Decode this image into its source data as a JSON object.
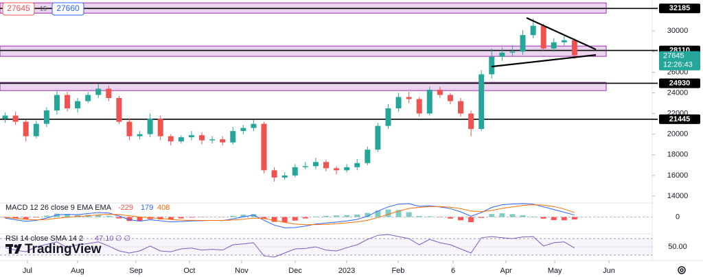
{
  "chart_data": {
    "type": "candlestick",
    "candles": {
      "open": [
        21500,
        21800,
        21200,
        19800,
        21000,
        22300,
        23800,
        22500,
        23200,
        23800,
        24400,
        23500,
        21200,
        19800,
        20000,
        21500,
        19800,
        19300,
        19700,
        19900,
        19400,
        19500,
        19200,
        20300,
        20600,
        21000,
        16500,
        15800,
        16000,
        16800,
        16900,
        17300,
        16700,
        16500,
        16800,
        17200,
        18500,
        20800,
        22500,
        23600,
        23400,
        22000,
        24300,
        23800,
        23200,
        22000,
        20500,
        25800,
        27500,
        27900,
        28000,
        29600,
        30500,
        28300,
        28900,
        29100
      ],
      "high": [
        22100,
        22200,
        21400,
        21300,
        22600,
        24200,
        24100,
        23500,
        24100,
        24900,
        24700,
        23700,
        21500,
        20300,
        22000,
        21800,
        20000,
        19900,
        20300,
        20200,
        19800,
        19800,
        20700,
        20900,
        21400,
        21200,
        16800,
        16300,
        17100,
        17300,
        17700,
        17500,
        16900,
        17100,
        17600,
        18800,
        21100,
        22900,
        24000,
        24100,
        23600,
        24600,
        24600,
        24000,
        23500,
        22300,
        26200,
        28300,
        28400,
        28600,
        30100,
        31200,
        30700,
        29300,
        29600,
        29300
      ],
      "low": [
        21100,
        20900,
        19300,
        19600,
        20700,
        21900,
        22200,
        22100,
        23000,
        23500,
        23200,
        21000,
        19400,
        19500,
        19700,
        19400,
        18900,
        19100,
        19400,
        19000,
        19100,
        18900,
        19000,
        20000,
        20300,
        16200,
        15400,
        15600,
        15800,
        16600,
        16600,
        16400,
        16100,
        16300,
        16500,
        17000,
        18300,
        20500,
        22200,
        23000,
        21700,
        21800,
        23500,
        22900,
        21700,
        19800,
        20300,
        25400,
        27100,
        27600,
        27700,
        29300,
        28100,
        28000,
        28600,
        27300
      ],
      "close": [
        21800,
        21200,
        19800,
        21000,
        22300,
        23800,
        22500,
        23200,
        23800,
        24400,
        23500,
        21200,
        19800,
        20000,
        21500,
        19800,
        19300,
        19700,
        19900,
        19400,
        19500,
        19200,
        20300,
        20600,
        21000,
        16500,
        15800,
        16000,
        16800,
        16900,
        17300,
        16700,
        16500,
        16800,
        17200,
        18500,
        20800,
        22500,
        23600,
        23400,
        22000,
        24300,
        23800,
        23200,
        22000,
        20500,
        25800,
        27500,
        27900,
        28000,
        29600,
        30500,
        28300,
        28900,
        29100,
        27645
      ]
    },
    "up_color": "#26a69a",
    "down_color": "#ef5350",
    "xlim": [
      -0.5,
      62.5
    ],
    "xticks": [
      {
        "value": 2.15,
        "label": "Jul"
      },
      {
        "value": 6.99,
        "label": "Aug"
      },
      {
        "value": 12.63,
        "label": "Sep"
      },
      {
        "value": 17.8,
        "label": "Oct"
      },
      {
        "value": 22.84,
        "label": "Nov"
      },
      {
        "value": 28.02,
        "label": "Dec"
      },
      {
        "value": 32.99,
        "label": "2023"
      },
      {
        "value": 37.96,
        "label": "Feb"
      },
      {
        "value": 43.27,
        "label": "6"
      },
      {
        "value": 48.38,
        "label": "Apr"
      },
      {
        "value": 53.09,
        "label": "May"
      },
      {
        "value": 58.32,
        "label": "Jun"
      }
    ],
    "ylim": [
      13400,
      33000
    ],
    "yticks": [
      14000,
      16000,
      18000,
      20000,
      22000,
      24000,
      26000,
      28000,
      30000
    ],
    "levels": [
      32185,
      28110,
      24930,
      21445
    ],
    "zones": [
      [
        31726,
        32722
      ],
      [
        27543,
        28539
      ],
      [
        24223,
        25020
      ]
    ],
    "zone_color": "#9c27b0",
    "trendlines": [
      [
        [
          50.37,
          31262
        ],
        [
          57.06,
          28207
        ]
      ],
      [
        [
          46.98,
          26547
        ],
        [
          57.06,
          27676
        ]
      ]
    ],
    "last_time": "12:26:43",
    "quote": {
      "spread": 15,
      "ask": 27660
    },
    "macd": {
      "title": "MACD 12 26 close 9 EMA EMA",
      "hist": [
        -50,
        -130,
        -180,
        -50,
        130,
        320,
        270,
        170,
        200,
        220,
        120,
        -130,
        -370,
        -380,
        -190,
        -210,
        -220,
        -130,
        -50,
        -20,
        10,
        -10,
        110,
        220,
        280,
        -160,
        -450,
        -500,
        -330,
        -130,
        60,
        120,
        150,
        180,
        230,
        380,
        600,
        700,
        650,
        450,
        100,
        70,
        -30,
        -140,
        -300,
        -480,
        -80,
        280,
        350,
        270,
        170,
        50,
        -150,
        -280,
        -300,
        -229
      ],
      "macd": [
        -100,
        -250,
        -400,
        -320,
        -100,
        200,
        250,
        220,
        320,
        420,
        380,
        100,
        -250,
        -380,
        -250,
        -350,
        -450,
        -420,
        -360,
        -340,
        -310,
        -330,
        -170,
        20,
        180,
        -300,
        -750,
        -1000,
        -980,
        -850,
        -650,
        -560,
        -470,
        -360,
        -220,
        80,
        550,
        950,
        1200,
        1250,
        1000,
        1050,
        950,
        780,
        480,
        80,
        420,
        900,
        1150,
        1220,
        1250,
        1200,
        950,
        700,
        450,
        179
      ],
      "signal": [
        -50,
        -120,
        -220,
        -270,
        -230,
        -120,
        -20,
        50,
        120,
        200,
        260,
        230,
        120,
        0,
        -60,
        -140,
        -230,
        -290,
        -310,
        -320,
        -320,
        -320,
        -280,
        -200,
        -100,
        -140,
        -300,
        -500,
        -650,
        -720,
        -710,
        -680,
        -620,
        -540,
        -450,
        -300,
        -50,
        250,
        550,
        800,
        900,
        980,
        980,
        920,
        780,
        560,
        500,
        620,
        800,
        950,
        1080,
        1150,
        1100,
        980,
        750,
        408
      ],
      "macd_color": "#2962ff",
      "signal_color": "#ff6d00",
      "hist_up": "#80cbc4",
      "hist_down": "#ff5252",
      "ylim": [
        -1500,
        1250
      ],
      "yticks": [
        0
      ]
    },
    "rsi": {
      "title": "RSI 14 close SMA 14 2",
      "values": [
        48,
        42,
        38,
        50,
        56,
        62,
        48,
        55,
        58,
        62,
        52,
        40,
        35,
        40,
        52,
        40,
        38,
        45,
        47,
        42,
        44,
        42,
        55,
        57,
        60,
        28,
        25,
        35,
        45,
        46,
        50,
        42,
        40,
        48,
        55,
        68,
        78,
        80,
        75,
        70,
        55,
        68,
        60,
        55,
        45,
        35,
        72,
        75,
        72,
        70,
        74,
        75,
        52,
        60,
        62,
        47.1
      ],
      "value_labels": [
        null,
        null,
        null,
        null,
        null,
        null,
        null,
        null,
        null,
        null,
        null,
        null,
        null,
        null,
        null,
        null,
        null,
        null,
        null,
        null,
        null,
        null,
        null,
        null,
        null,
        null,
        null,
        null,
        null,
        null,
        null,
        null,
        null,
        null,
        null,
        null,
        null,
        null,
        null,
        null,
        null,
        null,
        null,
        null,
        null,
        null,
        null,
        null,
        null,
        null,
        null,
        null,
        null,
        null,
        null,
        "47.10"
      ],
      "placeholders": "∅ ∅",
      "color": "#7e57c2",
      "ylim": [
        20,
        80
      ],
      "yticks": [
        {
          "value": 50,
          "label": "50.00"
        }
      ],
      "bands": [
        30,
        70
      ]
    },
    "branding": "TradingView"
  }
}
